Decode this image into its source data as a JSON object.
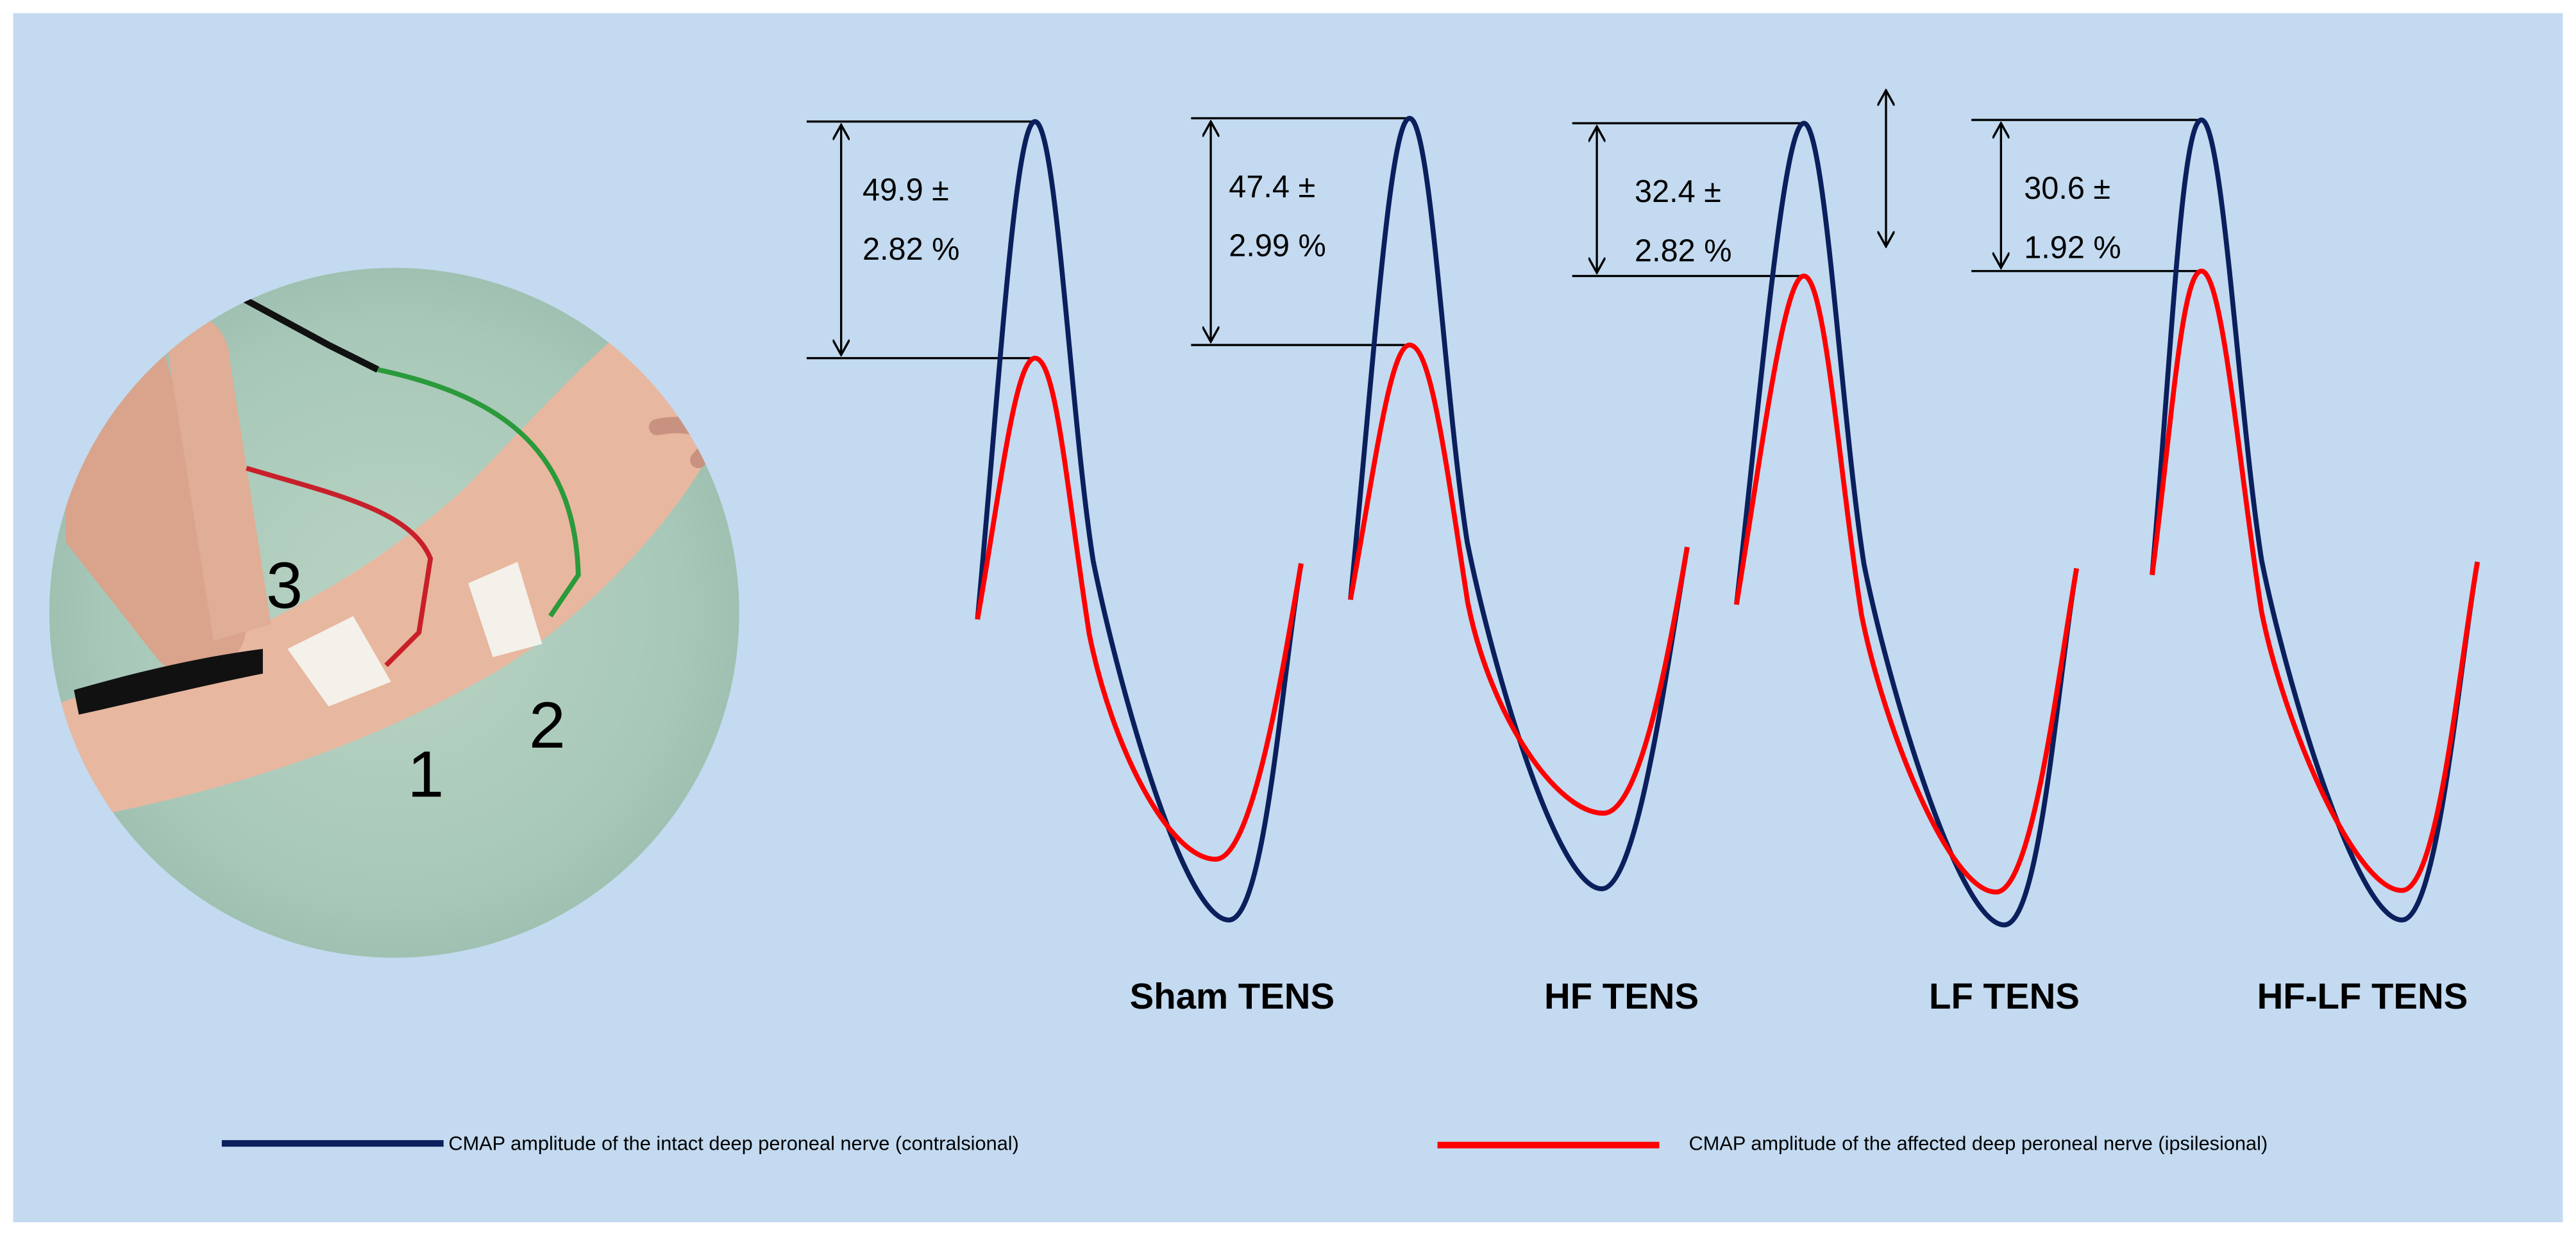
{
  "colors": {
    "background": "#C3DAF0",
    "intact": "#0A1F5C",
    "affected": "#FF0000"
  },
  "photo": {
    "electrode_labels": [
      "1",
      "2",
      "3"
    ]
  },
  "panels": [
    {
      "label": "Sham TENS",
      "value_line1": "49.9 ±",
      "value_line2": "2.82 %"
    },
    {
      "label": "HF TENS",
      "value_line1": "47.4 ±",
      "value_line2": "2.99 %"
    },
    {
      "label": "LF TENS",
      "value_line1": "32.4 ±",
      "value_line2": "2.82 %"
    },
    {
      "label": "HF-LF TENS",
      "value_line1": "30.6 ±",
      "value_line2": "1.92 %"
    }
  ],
  "legend": [
    {
      "label": "CMAP amplitude of the intact deep peroneal nerve (contralsional)",
      "color": "#0A1F5C"
    },
    {
      "label": "CMAP amplitude of the affected deep peroneal nerve (ipsilesional)",
      "color": "#FF0000"
    }
  ]
}
